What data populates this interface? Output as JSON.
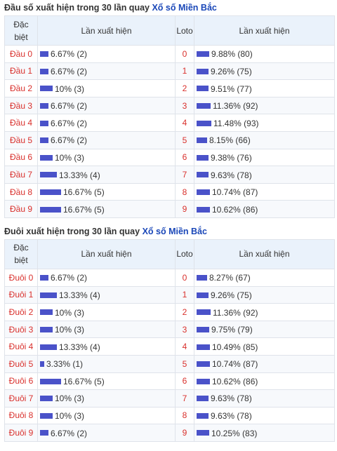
{
  "sections": [
    {
      "title_prefix": "Đầu số xuất hiện trong 30 lần quay",
      "title_link": "Xổ số Miền Bắc",
      "headers": {
        "col1": "Đặc biệt",
        "col2": "Lần xuất hiện",
        "col3": "Loto",
        "col4": "Lần xuất hiện"
      },
      "rows": [
        {
          "label": "Đầu 0",
          "db_pct": 6.67,
          "db_text": "6.67% (2)",
          "loto": "0",
          "lt_pct": 9.88,
          "lt_text": "9.88% (80)"
        },
        {
          "label": "Đầu 1",
          "db_pct": 6.67,
          "db_text": "6.67% (2)",
          "loto": "1",
          "lt_pct": 9.26,
          "lt_text": "9.26% (75)"
        },
        {
          "label": "Đầu 2",
          "db_pct": 10,
          "db_text": "10% (3)",
          "loto": "2",
          "lt_pct": 9.51,
          "lt_text": "9.51% (77)"
        },
        {
          "label": "Đầu 3",
          "db_pct": 6.67,
          "db_text": "6.67% (2)",
          "loto": "3",
          "lt_pct": 11.36,
          "lt_text": "11.36% (92)"
        },
        {
          "label": "Đầu 4",
          "db_pct": 6.67,
          "db_text": "6.67% (2)",
          "loto": "4",
          "lt_pct": 11.48,
          "lt_text": "11.48% (93)"
        },
        {
          "label": "Đầu 5",
          "db_pct": 6.67,
          "db_text": "6.67% (2)",
          "loto": "5",
          "lt_pct": 8.15,
          "lt_text": "8.15% (66)"
        },
        {
          "label": "Đầu 6",
          "db_pct": 10,
          "db_text": "10% (3)",
          "loto": "6",
          "lt_pct": 9.38,
          "lt_text": "9.38% (76)"
        },
        {
          "label": "Đầu 7",
          "db_pct": 13.33,
          "db_text": "13.33% (4)",
          "loto": "7",
          "lt_pct": 9.63,
          "lt_text": "9.63% (78)"
        },
        {
          "label": "Đầu 8",
          "db_pct": 16.67,
          "db_text": "16.67% (5)",
          "loto": "8",
          "lt_pct": 10.74,
          "lt_text": "10.74% (87)"
        },
        {
          "label": "Đầu 9",
          "db_pct": 16.67,
          "db_text": "16.67% (5)",
          "loto": "9",
          "lt_pct": 10.62,
          "lt_text": "10.62% (86)"
        }
      ]
    },
    {
      "title_prefix": "Đuôi xuất hiện trong 30 lần quay",
      "title_link": "Xổ số Miền Bắc",
      "headers": {
        "col1": "Đặc biệt",
        "col2": "Lần xuất hiện",
        "col3": "Loto",
        "col4": "Lần xuất hiện"
      },
      "rows": [
        {
          "label": "Đuôi 0",
          "db_pct": 6.67,
          "db_text": "6.67% (2)",
          "loto": "0",
          "lt_pct": 8.27,
          "lt_text": "8.27% (67)"
        },
        {
          "label": "Đuôi 1",
          "db_pct": 13.33,
          "db_text": "13.33% (4)",
          "loto": "1",
          "lt_pct": 9.26,
          "lt_text": "9.26% (75)"
        },
        {
          "label": "Đuôi 2",
          "db_pct": 10,
          "db_text": "10% (3)",
          "loto": "2",
          "lt_pct": 11.36,
          "lt_text": "11.36% (92)"
        },
        {
          "label": "Đuôi 3",
          "db_pct": 10,
          "db_text": "10% (3)",
          "loto": "3",
          "lt_pct": 9.75,
          "lt_text": "9.75% (79)"
        },
        {
          "label": "Đuôi 4",
          "db_pct": 13.33,
          "db_text": "13.33% (4)",
          "loto": "4",
          "lt_pct": 10.49,
          "lt_text": "10.49% (85)"
        },
        {
          "label": "Đuôi 5",
          "db_pct": 3.33,
          "db_text": "3.33% (1)",
          "loto": "5",
          "lt_pct": 10.74,
          "lt_text": "10.74% (87)"
        },
        {
          "label": "Đuôi 6",
          "db_pct": 16.67,
          "db_text": "16.67% (5)",
          "loto": "6",
          "lt_pct": 10.62,
          "lt_text": "10.62% (86)"
        },
        {
          "label": "Đuôi 7",
          "db_pct": 10,
          "db_text": "10% (3)",
          "loto": "7",
          "lt_pct": 9.63,
          "lt_text": "9.63% (78)"
        },
        {
          "label": "Đuôi 8",
          "db_pct": 10,
          "db_text": "10% (3)",
          "loto": "8",
          "lt_pct": 9.63,
          "lt_text": "9.63% (78)"
        },
        {
          "label": "Đuôi 9",
          "db_pct": 6.67,
          "db_text": "6.67% (2)",
          "loto": "9",
          "lt_pct": 10.25,
          "lt_text": "10.25% (83)"
        }
      ]
    }
  ],
  "colors": {
    "bar": "#4a52c9",
    "label": "#d9302c",
    "link": "#1a47b8",
    "header_bg": "#eaf2fb"
  }
}
